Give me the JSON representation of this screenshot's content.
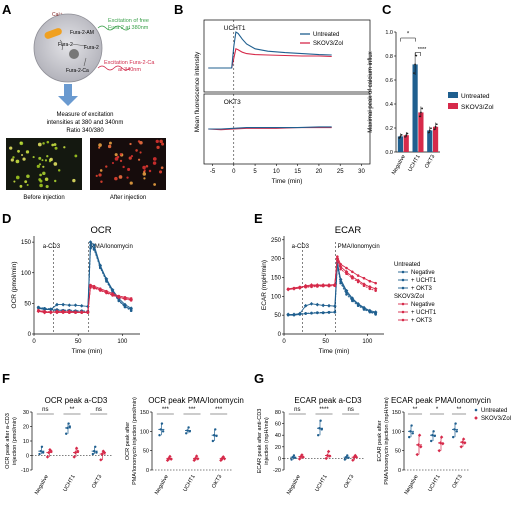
{
  "colors": {
    "untreated": "#1f5f8f",
    "treated": "#d62a4a",
    "green_text": "#3aa04a",
    "red_text": "#d12d4d",
    "arrow": "#6a9ad0"
  },
  "panel_labels": {
    "a": "A",
    "b": "B",
    "c": "C",
    "d": "D",
    "e": "E",
    "f": "F",
    "g": "G"
  },
  "schematic": {
    "ca": "Ca²⁺",
    "am": "Fura-2-AM",
    "f2a": "Fura-2",
    "f2b": "Fura-2",
    "f2ca": "Fura-2-Ca",
    "ex_free_1": "Excitation of free",
    "ex_free_2": "Fura 2 at 380nm",
    "ex_ca_1": "Excitation Fura-2-Ca",
    "ex_ca_2": "at 340nm",
    "measure_1": "Measure of excitation",
    "measure_2": "intensities at 380 and 340nm",
    "measure_3": "Ratio 340/380",
    "before": "Before injection",
    "after": "After injection",
    "icon": "cell-with-fura2-icon"
  },
  "icons": {
    "arrow": "down-arrow-icon"
  },
  "chart_data": [
    {
      "id": "B",
      "type": "line",
      "ylabel": "Mean fluorescence intensity",
      "xlabel": "Time (min)",
      "xticks": [
        -5,
        0,
        5,
        10,
        15,
        20,
        25,
        30
      ],
      "xlim": [
        -7,
        32
      ],
      "legend": [
        "Untreated",
        "SKOV3/Zol"
      ],
      "subplots": [
        {
          "label": "UCHT1",
          "ylim": [
            0.5,
            2.0
          ],
          "series": [
            {
              "name": "Untreated",
              "x": [
                -6,
                -4,
                -2,
                -0.5,
                0,
                0.5,
                1,
                2,
                3,
                5,
                8,
                12,
                16,
                20,
                23
              ],
              "y": [
                1.0,
                1.0,
                1.0,
                1.0,
                1.45,
                1.75,
                1.72,
                1.6,
                1.5,
                1.4,
                1.35,
                1.32,
                1.3,
                1.28,
                1.27
              ]
            },
            {
              "name": "SKOV3/Zol",
              "x": [
                -6,
                -4,
                -2,
                -0.5,
                0,
                0.5,
                1,
                2,
                3,
                5,
                8,
                12,
                16,
                20,
                23
              ],
              "y": [
                1.0,
                1.0,
                1.0,
                1.0,
                1.2,
                1.4,
                1.38,
                1.33,
                1.3,
                1.28,
                1.27,
                1.26,
                1.25,
                1.25,
                1.24
              ]
            }
          ]
        },
        {
          "label": "OKT3",
          "ylim": [
            0.5,
            1.5
          ],
          "series": [
            {
              "name": "Untreated",
              "x": [
                -6,
                -3,
                0,
                3,
                6,
                10,
                15,
                20,
                23
              ],
              "y": [
                1.0,
                1.0,
                1.01,
                1.02,
                1.02,
                1.02,
                1.02,
                1.03,
                1.03
              ]
            },
            {
              "name": "SKOV3/Zol",
              "x": [
                -6,
                -3,
                0,
                3,
                6,
                10,
                15,
                20,
                23
              ],
              "y": [
                1.0,
                0.99,
                1.0,
                1.01,
                1.01,
                1.01,
                1.02,
                1.02,
                1.02
              ]
            }
          ]
        }
      ]
    },
    {
      "id": "C",
      "type": "bar",
      "ylabel": "Maximal peak of calcium influx",
      "categories": [
        "Negative",
        "UCHT1",
        "OKT3"
      ],
      "ylim": [
        0,
        1.0
      ],
      "yticks": [
        0.0,
        0.2,
        0.4,
        0.6,
        0.8,
        1.0
      ],
      "series": [
        {
          "name": "Untreated",
          "values": [
            0.13,
            0.73,
            0.18
          ]
        },
        {
          "name": "SKOV3/Zol",
          "values": [
            0.14,
            0.33,
            0.21
          ]
        }
      ],
      "annotations": [
        "*",
        "****"
      ]
    },
    {
      "id": "D",
      "type": "line",
      "title": "OCR",
      "ylabel": "OCR (pmol/min)",
      "xlabel": "Time (min)",
      "xticks": [
        0,
        50,
        100
      ],
      "yticks": [
        0,
        50,
        100,
        150
      ],
      "xlim": [
        0,
        120
      ],
      "ylim": [
        0,
        160
      ],
      "injections": [
        {
          "x": 22,
          "label": "a-CD3"
        },
        {
          "x": 62,
          "label": "PMA/Ionomycin"
        }
      ],
      "series": [
        {
          "name": "Negative",
          "group": "Untreated",
          "x": [
            5,
            12,
            19,
            26,
            33,
            40,
            47,
            54,
            61,
            64,
            68,
            75,
            82,
            89,
            96,
            103,
            110
          ],
          "y": [
            42,
            40,
            40,
            38,
            38,
            37,
            37,
            36,
            36,
            145,
            140,
            110,
            88,
            70,
            55,
            45,
            40
          ]
        },
        {
          "name": "+ UCHT1",
          "group": "Untreated",
          "x": [
            5,
            12,
            19,
            26,
            33,
            40,
            47,
            54,
            61,
            64,
            68,
            75,
            82,
            89,
            96,
            103,
            110
          ],
          "y": [
            43,
            41,
            40,
            48,
            48,
            47,
            47,
            46,
            45,
            150,
            145,
            112,
            90,
            72,
            58,
            48,
            42
          ]
        },
        {
          "name": "+ OKT3",
          "group": "Untreated",
          "x": [
            5,
            12,
            19,
            26,
            33,
            40,
            47,
            54,
            61,
            64,
            68,
            75,
            82,
            89,
            96,
            103,
            110
          ],
          "y": [
            44,
            42,
            41,
            40,
            39,
            39,
            38,
            38,
            37,
            140,
            138,
            108,
            86,
            68,
            54,
            44,
            38
          ]
        },
        {
          "name": "Negative",
          "group": "SKOV3/Zol",
          "x": [
            5,
            12,
            19,
            26,
            33,
            40,
            47,
            54,
            61,
            64,
            68,
            75,
            82,
            89,
            96,
            103,
            110
          ],
          "y": [
            38,
            36,
            36,
            35,
            35,
            35,
            35,
            35,
            35,
            80,
            78,
            74,
            70,
            66,
            62,
            60,
            58
          ]
        },
        {
          "name": "+ UCHT1",
          "group": "SKOV3/Zol",
          "x": [
            5,
            12,
            19,
            26,
            33,
            40,
            47,
            54,
            61,
            64,
            68,
            75,
            82,
            89,
            96,
            103,
            110
          ],
          "y": [
            37,
            35,
            35,
            37,
            37,
            37,
            36,
            36,
            36,
            78,
            76,
            72,
            68,
            64,
            60,
            58,
            56
          ]
        },
        {
          "name": "+ OKT3",
          "group": "SKOV3/Zol",
          "x": [
            5,
            12,
            19,
            26,
            33,
            40,
            47,
            54,
            61,
            64,
            68,
            75,
            82,
            89,
            96,
            103,
            110
          ],
          "y": [
            39,
            37,
            36,
            36,
            36,
            35,
            35,
            35,
            35,
            76,
            75,
            71,
            67,
            63,
            60,
            57,
            55
          ]
        }
      ]
    },
    {
      "id": "E",
      "type": "line",
      "title": "ECAR",
      "ylabel": "ECAR (mpH/min)",
      "xlabel": "Time (min)",
      "xticks": [
        0,
        50,
        100
      ],
      "yticks": [
        0,
        50,
        100,
        150,
        200,
        250
      ],
      "xlim": [
        0,
        120
      ],
      "ylim": [
        0,
        260
      ],
      "injections": [
        {
          "x": 22,
          "label": "a-CD3"
        },
        {
          "x": 62,
          "label": "PMA/Ionomycin"
        }
      ],
      "legend_groups": [
        "Untreated",
        "SKOV3/Zol"
      ],
      "series": [
        {
          "name": "Negative",
          "group": "Untreated",
          "x": [
            5,
            12,
            19,
            26,
            33,
            40,
            47,
            54,
            61,
            64,
            68,
            75,
            82,
            89,
            96,
            103,
            110
          ],
          "y": [
            50,
            50,
            52,
            54,
            55,
            56,
            56,
            57,
            58,
            185,
            140,
            110,
            92,
            78,
            68,
            60,
            55
          ]
        },
        {
          "name": "+ UCHT1",
          "group": "Untreated",
          "x": [
            5,
            12,
            19,
            26,
            33,
            40,
            47,
            54,
            61,
            64,
            68,
            75,
            82,
            89,
            96,
            103,
            110
          ],
          "y": [
            52,
            52,
            54,
            75,
            80,
            78,
            76,
            75,
            74,
            190,
            145,
            115,
            95,
            80,
            70,
            62,
            58
          ]
        },
        {
          "name": "+ OKT3",
          "group": "Untreated",
          "x": [
            5,
            12,
            19,
            26,
            33,
            40,
            47,
            54,
            61,
            64,
            68,
            75,
            82,
            89,
            96,
            103,
            110
          ],
          "y": [
            51,
            51,
            53,
            55,
            56,
            57,
            57,
            58,
            58,
            180,
            135,
            105,
            88,
            75,
            65,
            58,
            52
          ]
        },
        {
          "name": "Negative",
          "group": "SKOV3/Zol",
          "x": [
            5,
            12,
            19,
            26,
            33,
            40,
            47,
            54,
            61,
            64,
            68,
            75,
            82,
            89,
            96,
            103,
            110
          ],
          "y": [
            120,
            122,
            125,
            126,
            127,
            128,
            128,
            129,
            130,
            205,
            185,
            175,
            165,
            155,
            148,
            140,
            135
          ]
        },
        {
          "name": "+ UCHT1",
          "group": "SKOV3/Zol",
          "x": [
            5,
            12,
            19,
            26,
            33,
            40,
            47,
            54,
            61,
            64,
            68,
            75,
            82,
            89,
            96,
            103,
            110
          ],
          "y": [
            118,
            120,
            122,
            128,
            130,
            130,
            130,
            130,
            131,
            200,
            178,
            165,
            152,
            142,
            132,
            125,
            120
          ]
        },
        {
          "name": "+ OKT3",
          "group": "SKOV3/Zol",
          "x": [
            5,
            12,
            19,
            26,
            33,
            40,
            47,
            54,
            61,
            64,
            68,
            75,
            82,
            89,
            96,
            103,
            110
          ],
          "y": [
            119,
            121,
            123,
            124,
            125,
            126,
            127,
            127,
            128,
            195,
            172,
            160,
            148,
            138,
            128,
            120,
            115
          ]
        }
      ]
    },
    {
      "id": "F1",
      "type": "scatter",
      "title": "OCR peak a-CD3",
      "ylabel": "OCR peak after a-CD3 injection (pmol/min)",
      "categories": [
        "Negative",
        "UCHT1",
        "OKT3"
      ],
      "ylim": [
        -10,
        30
      ],
      "yticks": [
        -10,
        0,
        10,
        20,
        30
      ],
      "significance": [
        "ns",
        "**",
        "ns"
      ],
      "series": [
        {
          "name": "Untreated",
          "means": [
            3,
            19,
            3
          ],
          "points": [
            [
              1,
              3,
              6,
              2
            ],
            [
              15,
              19,
              22,
              20
            ],
            [
              1,
              3,
              6,
              2
            ]
          ]
        },
        {
          "name": "SKOV3/Zol",
          "means": [
            2,
            2,
            1
          ],
          "points": [
            [
              -1,
              2,
              4,
              3
            ],
            [
              -1,
              2,
              5,
              3
            ],
            [
              -3,
              1,
              3,
              2
            ]
          ]
        }
      ]
    },
    {
      "id": "F2",
      "type": "scatter",
      "title": "OCR peak PMA/Ionomycin",
      "ylabel": "OCR peak after PMA/Ionomycin injection (pmol/min)",
      "categories": [
        "Negative",
        "UCHT1",
        "OKT3"
      ],
      "ylim": [
        0,
        150
      ],
      "yticks": [
        0,
        50,
        100,
        150
      ],
      "significance": [
        "***",
        "***",
        "***"
      ],
      "series": [
        {
          "name": "Untreated",
          "means": [
            105,
            102,
            90
          ],
          "points": [
            [
              90,
              105,
              120,
              100
            ],
            [
              95,
              102,
              110,
              100
            ],
            [
              75,
              90,
              105,
              88
            ]
          ]
        },
        {
          "name": "SKOV3/Zol",
          "means": [
            30,
            30,
            30
          ],
          "points": [
            [
              25,
              30,
              35,
              28
            ],
            [
              25,
              30,
              36,
              29
            ],
            [
              25,
              30,
              34,
              29
            ]
          ]
        }
      ]
    },
    {
      "id": "G1",
      "type": "scatter",
      "title": "ECAR peak a-CD3",
      "ylabel": "ECAR peak after anti-CD3 injection (mpH/min)",
      "categories": [
        "Negative",
        "UCHT1",
        "OKT3"
      ],
      "ylim": [
        -20,
        80
      ],
      "yticks": [
        -20,
        0,
        20,
        40,
        60,
        80
      ],
      "significance": [
        "ns",
        "****",
        "ns"
      ],
      "series": [
        {
          "name": "Untreated",
          "means": [
            2,
            52,
            2
          ],
          "points": [
            [
              -2,
              2,
              5,
              1
            ],
            [
              40,
              52,
              65,
              50
            ],
            [
              -2,
              2,
              5,
              1
            ]
          ]
        },
        {
          "name": "SKOV3/Zol",
          "means": [
            3,
            5,
            2
          ],
          "points": [
            [
              -1,
              3,
              6,
              2
            ],
            [
              0,
              5,
              12,
              4
            ],
            [
              -3,
              2,
              5,
              2
            ]
          ]
        }
      ]
    },
    {
      "id": "G2",
      "type": "scatter",
      "title": "ECAR peak PMA/Ionomycin",
      "ylabel": "ECAR peak after PMA/Ionomycin injection (mpH/min)",
      "categories": [
        "Negative",
        "UCHT1",
        "OKT3"
      ],
      "ylim": [
        0,
        150
      ],
      "yticks": [
        0,
        50,
        100,
        150
      ],
      "significance": [
        "**",
        "*",
        "**"
      ],
      "legend": [
        "Untreated",
        "SKOV3/Zol"
      ],
      "series": [
        {
          "name": "Untreated",
          "means": [
            100,
            90,
            105
          ],
          "points": [
            [
              85,
              100,
              115,
              95
            ],
            [
              75,
              90,
              100,
              88
            ],
            [
              85,
              105,
              120,
              100
            ]
          ]
        },
        {
          "name": "SKOV3/Zol",
          "means": [
            65,
            70,
            72
          ],
          "points": [
            [
              40,
              65,
              90,
              60
            ],
            [
              50,
              70,
              85,
              68
            ],
            [
              60,
              72,
              80,
              70
            ]
          ]
        }
      ]
    }
  ]
}
